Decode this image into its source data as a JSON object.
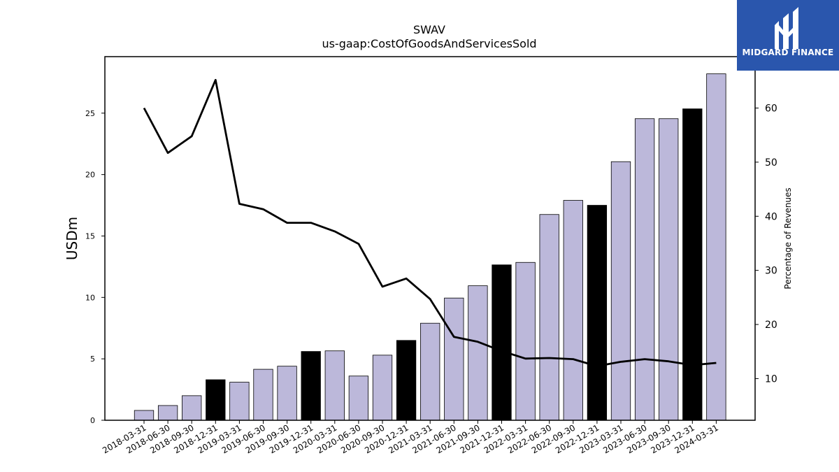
{
  "chart_data": {
    "type": "bar",
    "title": "SWAV",
    "subtitle": "us-gaap:CostOfGoodsAndServicesSold",
    "ylabel": "USDm",
    "y2label": "Percentage of Revenues",
    "ylim": [
      0,
      29.6
    ],
    "y2lim": [
      2.3,
      69.5
    ],
    "yticks": [
      0,
      5,
      10,
      15,
      20,
      25
    ],
    "y2ticks": [
      10,
      20,
      30,
      40,
      50,
      60
    ],
    "categories": [
      "2018-03-31",
      "2018-06-30",
      "2018-09-30",
      "2018-12-31",
      "2019-03-31",
      "2019-06-30",
      "2019-09-30",
      "2019-12-31",
      "2020-03-31",
      "2020-06-30",
      "2020-09-30",
      "2020-12-31",
      "2021-03-31",
      "2021-06-30",
      "2021-09-30",
      "2021-12-31",
      "2022-03-31",
      "2022-06-30",
      "2022-09-30",
      "2022-12-31",
      "2023-03-31",
      "2023-06-30",
      "2023-09-30",
      "2023-12-31",
      "2024-03-31"
    ],
    "series": [
      {
        "kind": "bar",
        "axis": "left",
        "values": [
          0.8,
          1.2,
          2.0,
          3.3,
          3.1,
          4.15,
          4.4,
          5.6,
          5.65,
          3.6,
          5.3,
          6.5,
          7.9,
          9.95,
          10.95,
          12.65,
          12.85,
          16.75,
          17.9,
          17.5,
          21.05,
          24.55,
          24.55,
          25.35,
          28.2
        ],
        "colors": [
          "#bcb8da",
          "#bcb8da",
          "#bcb8da",
          "#000000",
          "#bcb8da",
          "#bcb8da",
          "#bcb8da",
          "#000000",
          "#bcb8da",
          "#bcb8da",
          "#bcb8da",
          "#000000",
          "#bcb8da",
          "#bcb8da",
          "#bcb8da",
          "#000000",
          "#bcb8da",
          "#bcb8da",
          "#bcb8da",
          "#000000",
          "#bcb8da",
          "#bcb8da",
          "#bcb8da",
          "#000000",
          "#bcb8da"
        ]
      },
      {
        "kind": "line",
        "axis": "right",
        "color": "#000000",
        "values": [
          60.0,
          51.7,
          54.8,
          65.2,
          42.3,
          41.3,
          38.8,
          38.8,
          37.2,
          34.9,
          27.0,
          28.5,
          24.7,
          17.7,
          16.8,
          15.1,
          13.7,
          13.8,
          13.6,
          12.3,
          13.1,
          13.6,
          13.2,
          12.5,
          12.9
        ]
      }
    ],
    "grid": false,
    "legend": "none"
  },
  "logo": {
    "text": "MIDGARD FINANCE",
    "background": "#2a56ad"
  }
}
